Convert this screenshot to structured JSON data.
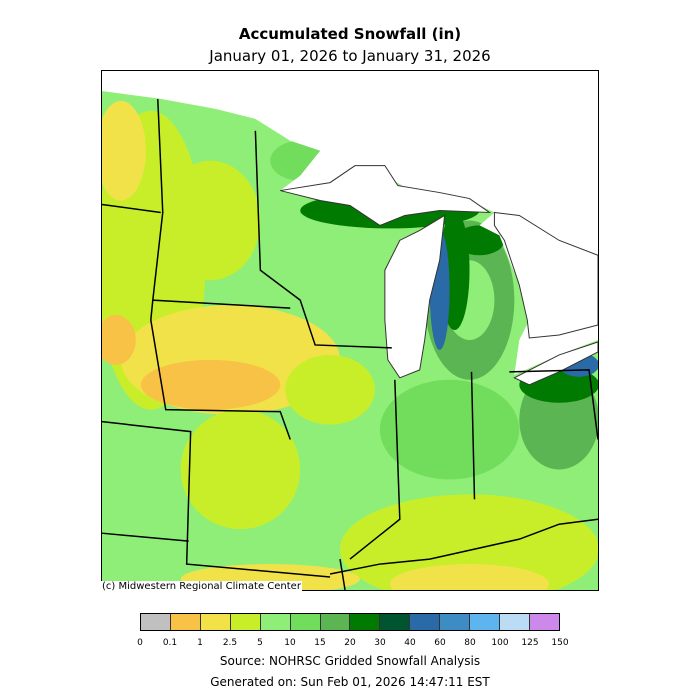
{
  "title": "Accumulated Snowfall (in)",
  "subtitle": "January 01, 2026 to January 31, 2026",
  "credit": "(c) Midwestern Regional Climate Center",
  "legend": {
    "ticks": [
      "0",
      "0.1",
      "1",
      "2.5",
      "5",
      "10",
      "15",
      "20",
      "30",
      "40",
      "60",
      "80",
      "100",
      "125",
      "150"
    ],
    "colors": [
      "#c0c0c0",
      "#f7c245",
      "#f2e24a",
      "#c8ee2a",
      "#8fee78",
      "#72dc5c",
      "#5ab552",
      "#007a00",
      "#005530",
      "#2a6aa6",
      "#3e8cc4",
      "#5eb4ee",
      "#bcdcf6",
      "#cc88ea"
    ]
  },
  "source": "Source: NOHRSC Gridded Snowfall Analysis",
  "generated": "Generated on: Sun Feb 01, 2026 14:47:11 EST"
}
